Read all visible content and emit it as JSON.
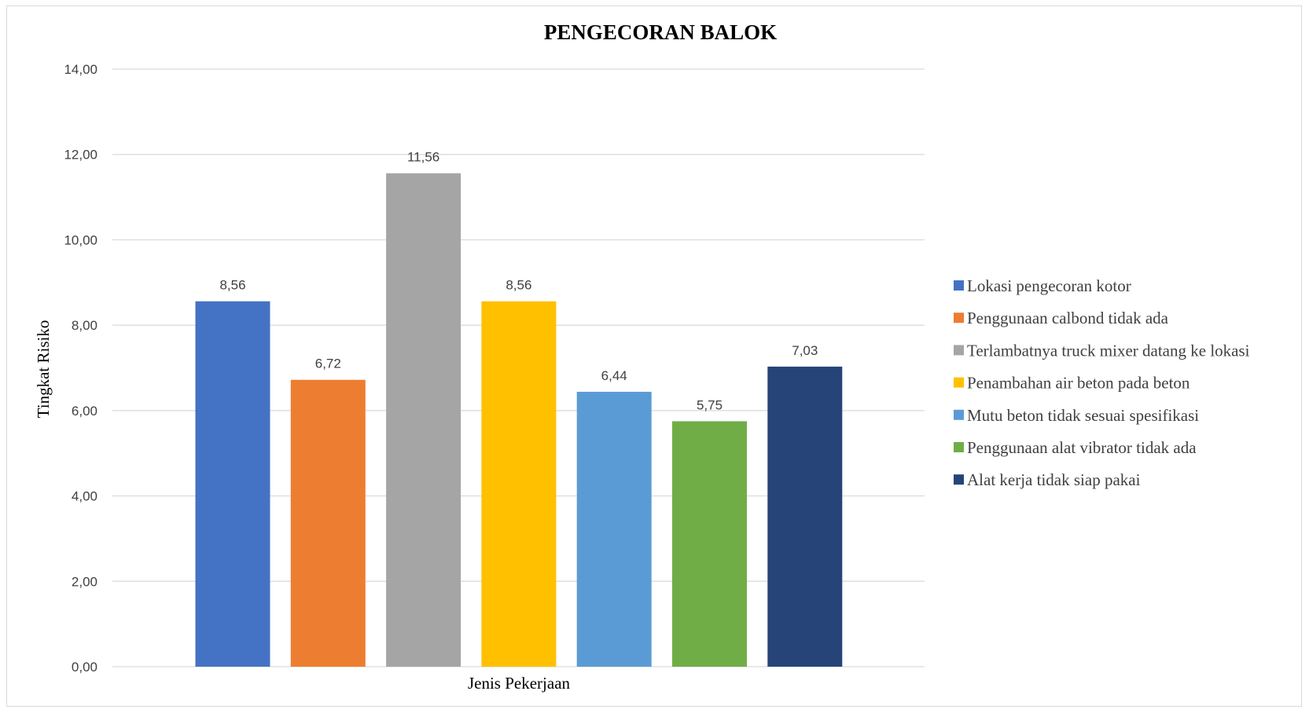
{
  "chart_data": {
    "type": "bar",
    "title": "PENGECORAN BALOK",
    "xlabel": "Jenis Pekerjaan",
    "ylabel": "Tingkat Risiko",
    "ylim": [
      0,
      14
    ],
    "yticks": [
      "0,00",
      "2,00",
      "4,00",
      "6,00",
      "8,00",
      "10,00",
      "12,00",
      "14,00"
    ],
    "grid": true,
    "legend_position": "right",
    "series": [
      {
        "name": "Lokasi pengecoran kotor",
        "value": 8.56,
        "label": "8,56",
        "color": "#4472C4"
      },
      {
        "name": "Penggunaan calbond tidak ada",
        "value": 6.72,
        "label": "6,72",
        "color": "#ED7D31"
      },
      {
        "name": "Terlambatnya truck mixer datang ke lokasi",
        "value": 11.56,
        "label": "11,56",
        "color": "#A5A5A5"
      },
      {
        "name": "Penambahan air beton pada beton",
        "value": 8.56,
        "label": "8,56",
        "color": "#FFC000"
      },
      {
        "name": "Mutu beton tidak sesuai spesifikasi",
        "value": 6.44,
        "label": "6,44",
        "color": "#5B9BD5"
      },
      {
        "name": "Penggunaan alat vibrator tidak ada",
        "value": 5.75,
        "label": "5,75",
        "color": "#70AD47"
      },
      {
        "name": "Alat kerja tidak siap pakai",
        "value": 7.03,
        "label": "7,03",
        "color": "#264478"
      }
    ]
  }
}
